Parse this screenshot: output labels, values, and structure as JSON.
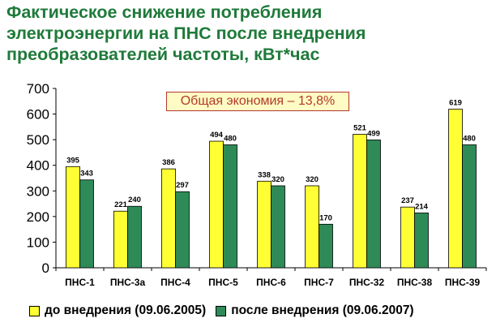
{
  "title_lines": [
    "Фактическое снижение потребления",
    "электроэнергии на ПНС после внедрения",
    "преобразователей частоты, кВт*час"
  ],
  "colors": {
    "title": "#1f7a3a",
    "series_before": "#ffff33",
    "series_after": "#2e8b57",
    "annotation_text": "#b23a2a",
    "annotation_bg": "#fffbc4"
  },
  "chart_data": {
    "type": "bar",
    "title": "Фактическое снижение потребления электроэнергии на ПНС после внедрения преобразователей частоты, кВт*час",
    "categories": [
      "ПНС-1",
      "ПНС-3а",
      "ПНС-4",
      "ПНС-5",
      "ПНС-6",
      "ПНС-7",
      "ПНС-32",
      "ПНС-38",
      "ПНС-39"
    ],
    "series": [
      {
        "name": "до внедрения (09.06.2005)",
        "values": [
          395,
          221,
          386,
          494,
          338,
          320,
          521,
          237,
          619
        ]
      },
      {
        "name": "после внедрения (09.06.2007)",
        "values": [
          343,
          240,
          297,
          480,
          320,
          170,
          499,
          214,
          480
        ]
      }
    ],
    "ylim": [
      0,
      700
    ],
    "yticks": [
      0,
      100,
      200,
      300,
      400,
      500,
      600,
      700
    ],
    "xlabel": "",
    "ylabel": "",
    "annotation": "Общая экономия – 13,8%",
    "legend_position": "bottom",
    "grid": false
  }
}
